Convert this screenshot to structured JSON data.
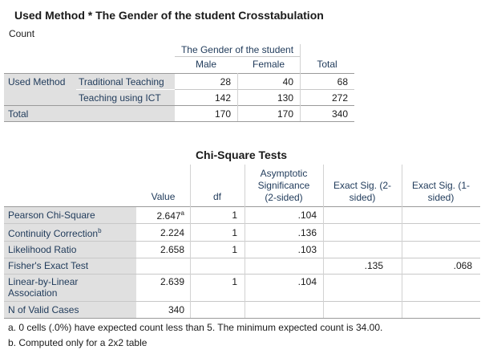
{
  "crosstab": {
    "title": "Used Method * The Gender of the student Crosstabulation",
    "subtitle": "Count",
    "group_header": "The Gender of the student",
    "col_male": "Male",
    "col_female": "Female",
    "col_total": "Total",
    "row_var": "Used Method",
    "rows": [
      {
        "label": "Traditional Teaching",
        "male": "28",
        "female": "40",
        "total": "68"
      },
      {
        "label": "Teaching using ICT",
        "male": "142",
        "female": "130",
        "total": "272"
      }
    ],
    "total_row": {
      "label": "Total",
      "male": "170",
      "female": "170",
      "total": "340"
    }
  },
  "chisq": {
    "title": "Chi-Square Tests",
    "headers": {
      "value": "Value",
      "df": "df",
      "asymp_1": "Asymptotic",
      "asymp_2": "Significance",
      "asymp_3": "(2-sided)",
      "exact2_1": "Exact Sig. (2-",
      "exact2_2": "sided)",
      "exact1_1": "Exact Sig. (1-",
      "exact1_2": "sided)"
    },
    "rows": [
      {
        "label": "Pearson Chi-Square",
        "value": "2.647",
        "value_sup": "a",
        "df": "1",
        "asymp": ".104",
        "exact2": "",
        "exact1": ""
      },
      {
        "label": "Continuity Correction",
        "label_sup": "b",
        "value": "2.224",
        "df": "1",
        "asymp": ".136",
        "exact2": "",
        "exact1": ""
      },
      {
        "label": "Likelihood Ratio",
        "value": "2.658",
        "df": "1",
        "asymp": ".103",
        "exact2": "",
        "exact1": ""
      },
      {
        "label": "Fisher's Exact Test",
        "value": "",
        "df": "",
        "asymp": "",
        "exact2": ".135",
        "exact1": ".068"
      },
      {
        "label_1": "Linear-by-Linear",
        "label_2": "Association",
        "value": "2.639",
        "df": "1",
        "asymp": ".104",
        "exact2": "",
        "exact1": ""
      },
      {
        "label": "N of Valid Cases",
        "value": "340",
        "df": "",
        "asymp": "",
        "exact2": "",
        "exact1": ""
      }
    ],
    "footnotes": [
      "a. 0 cells (.0%) have expected count less than 5. The minimum expected count is 34.00.",
      "b. Computed only for a 2x2 table"
    ]
  }
}
